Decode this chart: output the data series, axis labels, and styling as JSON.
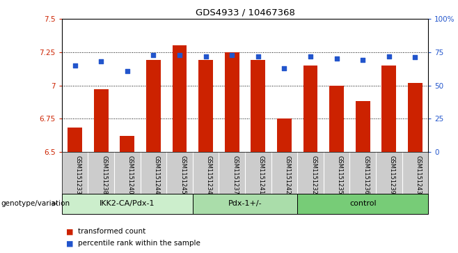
{
  "title": "GDS4933 / 10467368",
  "samples": [
    "GSM1151233",
    "GSM1151238",
    "GSM1151240",
    "GSM1151244",
    "GSM1151245",
    "GSM1151234",
    "GSM1151237",
    "GSM1151241",
    "GSM1151242",
    "GSM1151232",
    "GSM1151235",
    "GSM1151236",
    "GSM1151239",
    "GSM1151243"
  ],
  "bar_values": [
    6.68,
    6.97,
    6.62,
    7.19,
    7.3,
    7.19,
    7.25,
    7.19,
    6.75,
    7.15,
    7.0,
    6.88,
    7.15,
    7.02
  ],
  "percentile_values": [
    65,
    68,
    61,
    73,
    73,
    72,
    73,
    72,
    63,
    72,
    70,
    69,
    72,
    71
  ],
  "bar_bottom": 6.5,
  "ylim_left": [
    6.5,
    7.5
  ],
  "ylim_right": [
    0,
    100
  ],
  "yticks_left": [
    6.5,
    6.75,
    7.0,
    7.25,
    7.5
  ],
  "yticks_right": [
    0,
    25,
    50,
    75,
    100
  ],
  "ytick_labels_left": [
    "6.5",
    "6.75",
    "7",
    "7.25",
    "7.5"
  ],
  "ytick_labels_right": [
    "0",
    "25",
    "50",
    "75",
    "100%"
  ],
  "hlines": [
    6.75,
    7.0,
    7.25
  ],
  "bar_color": "#cc2200",
  "dot_color": "#2255cc",
  "groups": [
    {
      "label": "IKK2-CA/Pdx-1",
      "start": 0,
      "end": 5,
      "color": "#cceecc"
    },
    {
      "label": "Pdx-1+/-",
      "start": 5,
      "end": 9,
      "color": "#aaddaa"
    },
    {
      "label": "control",
      "start": 9,
      "end": 14,
      "color": "#77cc77"
    }
  ],
  "group_label_prefix": "genotype/variation",
  "legend_bar_label": "transformed count",
  "legend_dot_label": "percentile rank within the sample",
  "bar_width": 0.55,
  "tick_area_color": "#cccccc",
  "background_color": "#ffffff"
}
